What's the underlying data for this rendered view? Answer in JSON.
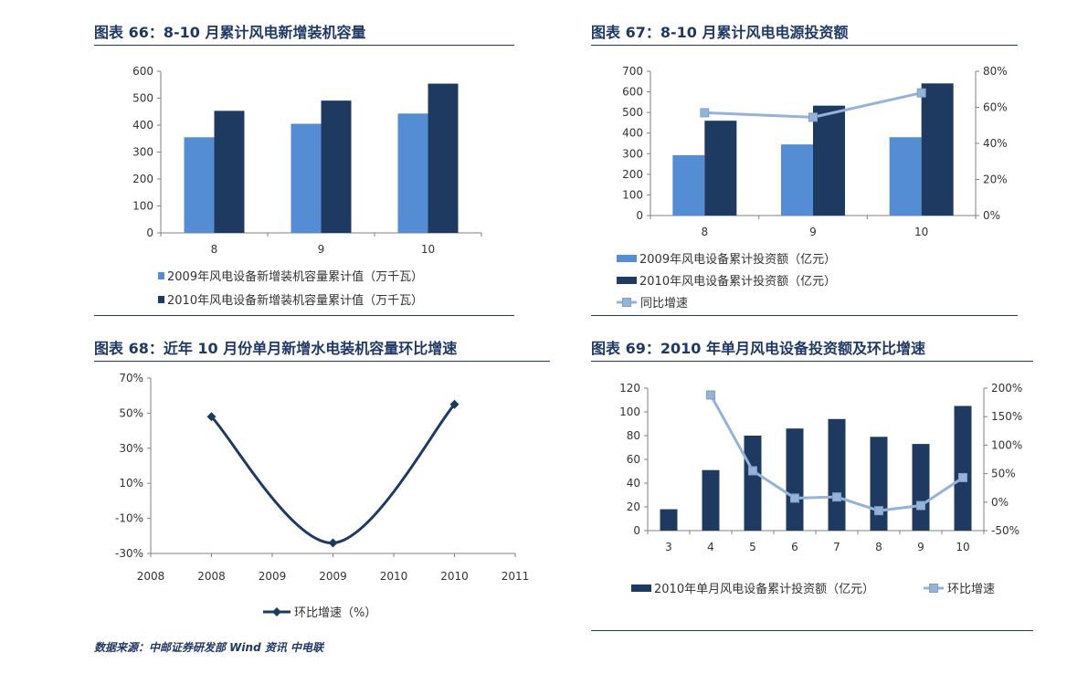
{
  "footer": "数据来源：中邮证券研发部  Wind 资讯  中电联",
  "colors": {
    "light": "#548dd4",
    "dark": "#1f3a60",
    "line": "#95b3d7",
    "title": "#1f3864"
  },
  "chart_data": [
    {
      "title": "图表 66：8-10 月累计风电新增装机容量",
      "type": "bar",
      "categories": [
        "8",
        "9",
        "10"
      ],
      "series": [
        {
          "name": "2009年风电设备新增装机容量累计值（万千瓦）",
          "values": [
            355,
            405,
            443
          ]
        },
        {
          "name": "2010年风电设备新增装机容量累计值（万千瓦）",
          "values": [
            453,
            491,
            554
          ]
        }
      ],
      "ylim": [
        0,
        600
      ],
      "yticks": [
        "0",
        "100",
        "200",
        "300",
        "400",
        "500",
        "600"
      ],
      "grid": false,
      "legend": "bottom"
    },
    {
      "title": "图表 67：8-10 月累计风电电源投资额",
      "type": "bar",
      "categories": [
        "8",
        "9",
        "10"
      ],
      "series": [
        {
          "name": "2009年风电设备累计投资额（亿元）",
          "values": [
            293,
            345,
            380
          ]
        },
        {
          "name": "2010年风电设备累计投资额（亿元）",
          "values": [
            460,
            533,
            641
          ]
        },
        {
          "name": "同比增速",
          "type": "line",
          "axis": "right",
          "values": [
            0.57,
            0.545,
            0.68
          ]
        }
      ],
      "ylim": [
        0,
        700
      ],
      "yticks": [
        "0",
        "100",
        "200",
        "300",
        "400",
        "500",
        "600",
        "700"
      ],
      "y2lim": [
        0,
        0.8
      ],
      "y2ticks": [
        "0%",
        "20%",
        "40%",
        "60%",
        "80%"
      ],
      "grid": false,
      "legend": "bottom"
    },
    {
      "title": "图表 68：近年 10 月份单月新增水电装机容量环比增速",
      "type": "line",
      "x": [
        2008,
        2009,
        2010
      ],
      "series": [
        {
          "name": "环比增速（%）",
          "values": [
            0.48,
            -0.24,
            0.55
          ]
        }
      ],
      "xticks": [
        "2008",
        "2008",
        "2009",
        "2009",
        "2010",
        "2010",
        "2011"
      ],
      "ylim": [
        -0.3,
        0.7
      ],
      "yticks": [
        "-30%",
        "-10%",
        "10%",
        "30%",
        "50%",
        "70%"
      ],
      "grid": false,
      "legend": "bottom"
    },
    {
      "title": "图表 69：2010 年单月风电设备投资额及环比增速",
      "type": "bar",
      "categories": [
        "3",
        "4",
        "5",
        "6",
        "7",
        "8",
        "9",
        "10"
      ],
      "series": [
        {
          "name": "2010年单月风电设备累计投资额（亿元）",
          "values": [
            18,
            51,
            80,
            86,
            94,
            79,
            73,
            105
          ]
        },
        {
          "name": "环比增速",
          "type": "line",
          "axis": "right",
          "values": [
            null,
            1.88,
            0.55,
            0.07,
            0.09,
            -0.15,
            -0.06,
            0.43
          ]
        }
      ],
      "ylim": [
        0,
        120
      ],
      "yticks": [
        "0",
        "20",
        "40",
        "60",
        "80",
        "100",
        "120"
      ],
      "y2lim": [
        -0.5,
        2.0
      ],
      "y2ticks": [
        "-50%",
        "0%",
        "50%",
        "100%",
        "150%",
        "200%"
      ],
      "grid": false,
      "legend": "bottom"
    }
  ]
}
